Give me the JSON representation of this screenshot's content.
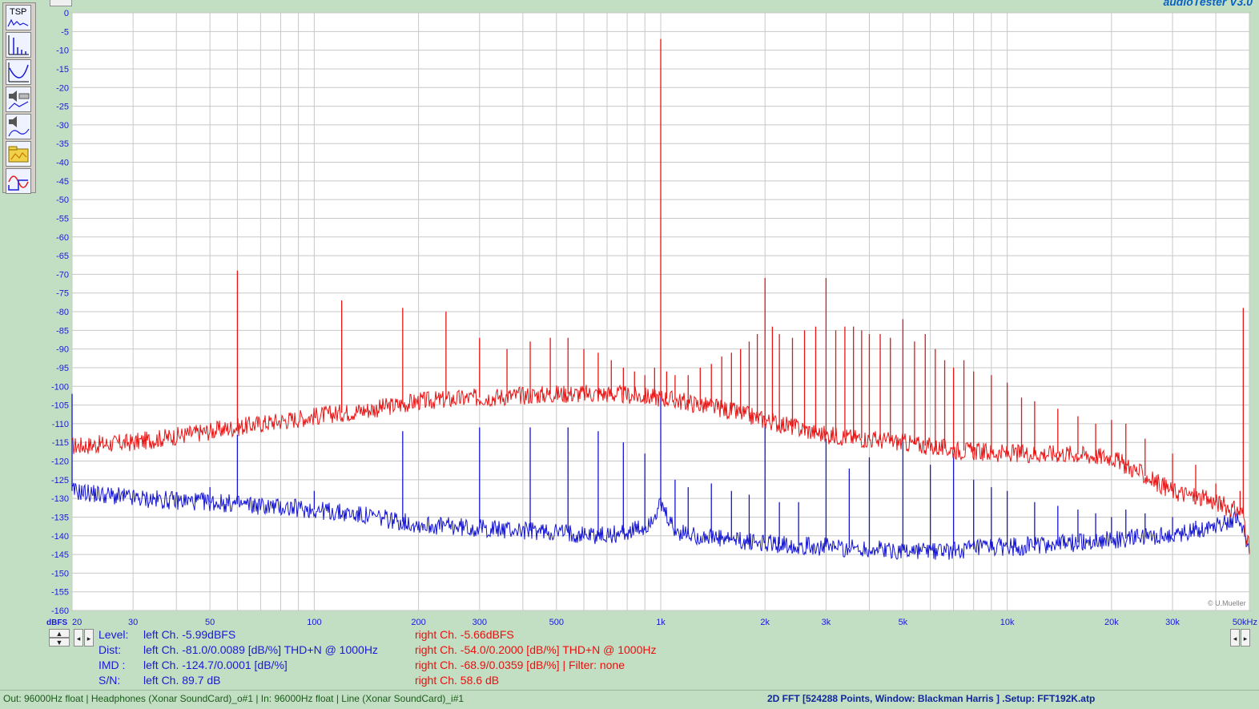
{
  "brand": "audioTester  V3.0",
  "toolbar": {
    "items": [
      {
        "label": "TSP",
        "icon": "tsp-icon"
      },
      {
        "icon": "fft-spectrum-icon"
      },
      {
        "icon": "frequency-response-icon"
      },
      {
        "icon": "speaker-volume-icon"
      },
      {
        "icon": "speaker-response-icon"
      },
      {
        "icon": "folder-open-icon"
      },
      {
        "icon": "oscilloscope-icon"
      }
    ]
  },
  "chart_data": {
    "type": "line",
    "ylabel": "dBFS",
    "ylim": [
      -160,
      0
    ],
    "yticks": [
      "0",
      "-5",
      "-10",
      "-15",
      "-20",
      "-25",
      "-30",
      "-35",
      "-40",
      "-45",
      "-50",
      "-55",
      "-60",
      "-65",
      "-70",
      "-75",
      "-80",
      "-85",
      "-90",
      "-95",
      "-100",
      "-105",
      "-110",
      "-115",
      "-120",
      "-125",
      "-130",
      "-135",
      "-140",
      "-145",
      "-150",
      "-155",
      "-160"
    ],
    "xscale": "log",
    "xlim": [
      20,
      50000
    ],
    "xticks": [
      {
        "value": 20,
        "label": "20"
      },
      {
        "value": 30,
        "label": "30"
      },
      {
        "value": 50,
        "label": "50"
      },
      {
        "value": 100,
        "label": "100"
      },
      {
        "value": 200,
        "label": "200"
      },
      {
        "value": 300,
        "label": "300"
      },
      {
        "value": 500,
        "label": "500"
      },
      {
        "value": 1000,
        "label": "1k"
      },
      {
        "value": 2000,
        "label": "2k"
      },
      {
        "value": 3000,
        "label": "3k"
      },
      {
        "value": 5000,
        "label": "5k"
      },
      {
        "value": 10000,
        "label": "10k"
      },
      {
        "value": 20000,
        "label": "20k"
      },
      {
        "value": 30000,
        "label": "30k"
      },
      {
        "value": 50000,
        "label": "50kHz"
      }
    ],
    "grid": true,
    "series": [
      {
        "color": "#e81414",
        "floor": [
          [
            20,
            -116
          ],
          [
            30,
            -115
          ],
          [
            50,
            -112
          ],
          [
            70,
            -110
          ],
          [
            100,
            -108
          ],
          [
            150,
            -106
          ],
          [
            200,
            -104
          ],
          [
            300,
            -103
          ],
          [
            500,
            -102
          ],
          [
            700,
            -102
          ],
          [
            1000,
            -103
          ],
          [
            1500,
            -106
          ],
          [
            2000,
            -109
          ],
          [
            3000,
            -113
          ],
          [
            5000,
            -115
          ],
          [
            7000,
            -117
          ],
          [
            10000,
            -118
          ],
          [
            15000,
            -118
          ],
          [
            20000,
            -119
          ],
          [
            25000,
            -124
          ],
          [
            30000,
            -128
          ],
          [
            40000,
            -131
          ],
          [
            48000,
            -134
          ],
          [
            50000,
            -144
          ]
        ],
        "peaks": [
          [
            60,
            -69
          ],
          [
            120,
            -77
          ],
          [
            180,
            -79
          ],
          [
            240,
            -80
          ],
          [
            300,
            -87
          ],
          [
            360,
            -90
          ],
          [
            420,
            -88
          ],
          [
            480,
            -87
          ],
          [
            540,
            -87
          ],
          [
            600,
            -90
          ],
          [
            660,
            -91
          ],
          [
            720,
            -93
          ],
          [
            780,
            -95
          ],
          [
            840,
            -96
          ],
          [
            900,
            -97
          ],
          [
            960,
            -95
          ],
          [
            1000,
            -7
          ],
          [
            1040,
            -96
          ],
          [
            1100,
            -97
          ],
          [
            1200,
            -97
          ],
          [
            1300,
            -95
          ],
          [
            1400,
            -94
          ],
          [
            1500,
            -92
          ],
          [
            1600,
            -91
          ],
          [
            1700,
            -90
          ],
          [
            1800,
            -88
          ],
          [
            1900,
            -86
          ],
          [
            2000,
            -71
          ],
          [
            2100,
            -84
          ],
          [
            2200,
            -86
          ],
          [
            2400,
            -87
          ],
          [
            2600,
            -85
          ],
          [
            2800,
            -84
          ],
          [
            3000,
            -71
          ],
          [
            3200,
            -85
          ],
          [
            3400,
            -84
          ],
          [
            3600,
            -84
          ],
          [
            3800,
            -85
          ],
          [
            4000,
            -86
          ],
          [
            4300,
            -86
          ],
          [
            4600,
            -87
          ],
          [
            5000,
            -82
          ],
          [
            5400,
            -88
          ],
          [
            5800,
            -86
          ],
          [
            6200,
            -90
          ],
          [
            6600,
            -93
          ],
          [
            7000,
            -95
          ],
          [
            7500,
            -93
          ],
          [
            8000,
            -96
          ],
          [
            9000,
            -97
          ],
          [
            10000,
            -99
          ],
          [
            11000,
            -103
          ],
          [
            12000,
            -104
          ],
          [
            14000,
            -106
          ],
          [
            16000,
            -108
          ],
          [
            18000,
            -110
          ],
          [
            20000,
            -109
          ],
          [
            22000,
            -110
          ],
          [
            25000,
            -114
          ],
          [
            30000,
            -118
          ],
          [
            35000,
            -121
          ],
          [
            40000,
            -126
          ],
          [
            47000,
            -128
          ],
          [
            48000,
            -79
          ]
        ]
      },
      {
        "color": "#1414d2",
        "floor": [
          [
            20,
            -128
          ],
          [
            30,
            -130
          ],
          [
            50,
            -131
          ],
          [
            70,
            -132
          ],
          [
            100,
            -133
          ],
          [
            150,
            -135
          ],
          [
            200,
            -137
          ],
          [
            300,
            -138
          ],
          [
            500,
            -139
          ],
          [
            700,
            -140
          ],
          [
            900,
            -138
          ],
          [
            1000,
            -132
          ],
          [
            1100,
            -139
          ],
          [
            1500,
            -141
          ],
          [
            2000,
            -142
          ],
          [
            3000,
            -143
          ],
          [
            5000,
            -144
          ],
          [
            7000,
            -144
          ],
          [
            10000,
            -143
          ],
          [
            15000,
            -142
          ],
          [
            20000,
            -141
          ],
          [
            30000,
            -140
          ],
          [
            40000,
            -137
          ],
          [
            47000,
            -135
          ],
          [
            50000,
            -145
          ]
        ],
        "peaks": [
          [
            20,
            -102
          ],
          [
            50,
            -127
          ],
          [
            60,
            -113
          ],
          [
            100,
            -128
          ],
          [
            180,
            -112
          ],
          [
            300,
            -111
          ],
          [
            420,
            -111
          ],
          [
            540,
            -111
          ],
          [
            660,
            -112
          ],
          [
            780,
            -115
          ],
          [
            900,
            -118
          ],
          [
            1000,
            -102
          ],
          [
            1100,
            -125
          ],
          [
            1200,
            -127
          ],
          [
            1400,
            -126
          ],
          [
            1600,
            -128
          ],
          [
            1800,
            -129
          ],
          [
            2000,
            -110
          ],
          [
            2200,
            -131
          ],
          [
            2500,
            -131
          ],
          [
            3000,
            -114
          ],
          [
            3500,
            -122
          ],
          [
            4000,
            -119
          ],
          [
            5000,
            -114
          ],
          [
            6000,
            -121
          ],
          [
            7000,
            -118
          ],
          [
            8000,
            -125
          ],
          [
            9000,
            -127
          ],
          [
            10000,
            -128
          ],
          [
            12000,
            -131
          ],
          [
            14000,
            -132
          ],
          [
            16000,
            -133
          ],
          [
            18000,
            -134
          ],
          [
            20000,
            -135
          ],
          [
            22000,
            -133
          ],
          [
            25000,
            -134
          ],
          [
            30000,
            -135
          ],
          [
            35000,
            -136
          ],
          [
            40000,
            -137
          ]
        ]
      }
    ]
  },
  "legend": {
    "rows": [
      {
        "label": "Level:",
        "left": "left Ch. -5.99dBFS",
        "right": "right Ch. -5.66dBFS"
      },
      {
        "label": "Dist:",
        "left": "left Ch. -81.0/0.0089 [dB/%] THD+N  @ 1000Hz",
        "right": "right Ch. -54.0/0.2000 [dB/%] THD+N  @ 1000Hz"
      },
      {
        "label": "IMD  :",
        "left": "left Ch. -124.7/0.0001 [dB/%]",
        "right": "right Ch. -68.9/0.0359 [dB/%] |   Filter: none"
      },
      {
        "label": "S/N:",
        "left": "left Ch. 89.7 dB",
        "right": "right Ch. 58.6 dB"
      }
    ]
  },
  "signature": "© U.Mueller",
  "status": {
    "left": "Out: 96000Hz float  | Headphones (Xonar SoundCard)_o#1  | In: 96000Hz float  | Line (Xonar SoundCard)_i#1",
    "right": "2D FFT [524288 Points, Window: Blackman Harris ]  .Setup: FFT192K.atp"
  }
}
